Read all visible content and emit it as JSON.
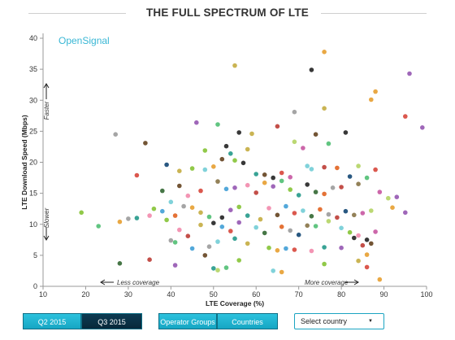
{
  "title": "THE FULL SPECTRUM OF LTE",
  "brand": {
    "text": "OpenSignal",
    "color": "#39b7d5"
  },
  "controls": {
    "period_buttons": [
      "Q2 2015",
      "Q3 2015"
    ],
    "group_buttons": [
      "Operator Groups",
      "Countries"
    ],
    "select": {
      "label": "Select country",
      "arrow": "▼"
    }
  },
  "chart_data": {
    "type": "scatter",
    "title": "THE FULL SPECTRUM OF LTE",
    "xlabel": "LTE Coverage (%)",
    "ylabel": "LTE Download Speed (Mbps)",
    "xlim": [
      10,
      100
    ],
    "ylim": [
      0,
      40
    ],
    "xticks": [
      10,
      20,
      30,
      40,
      50,
      60,
      70,
      80,
      90,
      100
    ],
    "yticks": [
      0,
      5,
      10,
      15,
      20,
      25,
      30,
      35,
      40
    ],
    "grid": false,
    "annotations": {
      "faster": "Faster",
      "slower": "Slower",
      "less_coverage": "Less coverage",
      "more_coverage": "More coverage"
    },
    "palette": [
      "#e8a33a",
      "#8bc63f",
      "#2e9e8f",
      "#f28fb0",
      "#c7b04a",
      "#6b4c2a",
      "#2d2d2d",
      "#4aa3d8",
      "#d94f45",
      "#9a5fb5",
      "#79d0d8",
      "#3c6f3c",
      "#e36a2b",
      "#a0a0a0",
      "#c0463f",
      "#1e4f7a",
      "#8d7a4f",
      "#59c27a",
      "#c95fa5",
      "#b7d66b"
    ],
    "points": [
      [
        76,
        37.8,
        0
      ],
      [
        96,
        34.3,
        9
      ],
      [
        73,
        34.9,
        6
      ],
      [
        55,
        35.6,
        4
      ],
      [
        88,
        31.4,
        0
      ],
      [
        87,
        30.1,
        0
      ],
      [
        99,
        25.6,
        9
      ],
      [
        95,
        27.4,
        8
      ],
      [
        76,
        28.7,
        4
      ],
      [
        69,
        28.1,
        13
      ],
      [
        27,
        24.5,
        13
      ],
      [
        34,
        23.1,
        5
      ],
      [
        51,
        26.1,
        17
      ],
      [
        46,
        26.4,
        9
      ],
      [
        56,
        24.8,
        6
      ],
      [
        59,
        24.6,
        4
      ],
      [
        65,
        25.8,
        14
      ],
      [
        81,
        24.8,
        6
      ],
      [
        74,
        24.5,
        5
      ],
      [
        69,
        23.3,
        19
      ],
      [
        77,
        23.0,
        17
      ],
      [
        71,
        22.3,
        18
      ],
      [
        53,
        22.6,
        6
      ],
      [
        48,
        21.9,
        1
      ],
      [
        58,
        22.1,
        4
      ],
      [
        54,
        21.4,
        2
      ],
      [
        52,
        20.5,
        5
      ],
      [
        55,
        20.3,
        1
      ],
      [
        57,
        19.9,
        6
      ],
      [
        50,
        19.3,
        0
      ],
      [
        45,
        19.0,
        1
      ],
      [
        39,
        19.6,
        15
      ],
      [
        42,
        18.6,
        4
      ],
      [
        48,
        18.8,
        10
      ],
      [
        60,
        18.1,
        2
      ],
      [
        62,
        18.0,
        5
      ],
      [
        64,
        17.5,
        6
      ],
      [
        66,
        18.3,
        8
      ],
      [
        68,
        17.6,
        18
      ],
      [
        72,
        19.4,
        10
      ],
      [
        73,
        18.9,
        10
      ],
      [
        76,
        19.2,
        14
      ],
      [
        79,
        19.1,
        12
      ],
      [
        84,
        19.4,
        19
      ],
      [
        88,
        18.8,
        8
      ],
      [
        32,
        17.9,
        8
      ],
      [
        42,
        16.2,
        5
      ],
      [
        44,
        14.6,
        3
      ],
      [
        47,
        15.4,
        8
      ],
      [
        51,
        16.9,
        16
      ],
      [
        53,
        15.7,
        7
      ],
      [
        55,
        15.9,
        9
      ],
      [
        58,
        16.3,
        3
      ],
      [
        60,
        15.1,
        14
      ],
      [
        62,
        16.7,
        0
      ],
      [
        64,
        16.1,
        9
      ],
      [
        66,
        17.0,
        17
      ],
      [
        68,
        15.6,
        1
      ],
      [
        70,
        14.7,
        2
      ],
      [
        72,
        16.4,
        6
      ],
      [
        74,
        15.2,
        11
      ],
      [
        76,
        14.9,
        12
      ],
      [
        78,
        15.9,
        13
      ],
      [
        80,
        16.0,
        14
      ],
      [
        82,
        17.7,
        15
      ],
      [
        84,
        16.5,
        16
      ],
      [
        86,
        17.5,
        17
      ],
      [
        89,
        15.2,
        18
      ],
      [
        91,
        14.2,
        19
      ],
      [
        93,
        14.4,
        9
      ],
      [
        38,
        15.4,
        11
      ],
      [
        40,
        13.6,
        10
      ],
      [
        36,
        12.5,
        1
      ],
      [
        38,
        12.1,
        7
      ],
      [
        41,
        11.4,
        12
      ],
      [
        43,
        12.9,
        13
      ],
      [
        45,
        12.7,
        0
      ],
      [
        47,
        11.9,
        4
      ],
      [
        49,
        11.2,
        17
      ],
      [
        52,
        11.1,
        6
      ],
      [
        54,
        12.3,
        9
      ],
      [
        56,
        12.8,
        1
      ],
      [
        58,
        11.4,
        2
      ],
      [
        61,
        10.8,
        4
      ],
      [
        63,
        12.6,
        3
      ],
      [
        65,
        11.5,
        5
      ],
      [
        67,
        12.9,
        7
      ],
      [
        69,
        11.8,
        8
      ],
      [
        71,
        12.2,
        10
      ],
      [
        73,
        11.3,
        11
      ],
      [
        75,
        12.4,
        12
      ],
      [
        77,
        11.6,
        13
      ],
      [
        79,
        11.1,
        14
      ],
      [
        81,
        12.1,
        15
      ],
      [
        83,
        11.5,
        16
      ],
      [
        85,
        11.8,
        18
      ],
      [
        87,
        12.2,
        19
      ],
      [
        92,
        12.7,
        0
      ],
      [
        95,
        11.9,
        9
      ],
      [
        19,
        11.9,
        1
      ],
      [
        23,
        9.7,
        17
      ],
      [
        28,
        10.4,
        0
      ],
      [
        30,
        10.9,
        13
      ],
      [
        32,
        11.0,
        2
      ],
      [
        35,
        11.4,
        3
      ],
      [
        39,
        10.7,
        1
      ],
      [
        42,
        9.1,
        3
      ],
      [
        44,
        8.1,
        14
      ],
      [
        47,
        9.9,
        4
      ],
      [
        50,
        10.2,
        6
      ],
      [
        52,
        9.6,
        7
      ],
      [
        54,
        8.9,
        8
      ],
      [
        56,
        10.3,
        9
      ],
      [
        60,
        9.5,
        10
      ],
      [
        62,
        8.6,
        11
      ],
      [
        66,
        9.6,
        12
      ],
      [
        68,
        9.0,
        13
      ],
      [
        70,
        8.3,
        15
      ],
      [
        72,
        9.8,
        16
      ],
      [
        74,
        9.7,
        17
      ],
      [
        77,
        10.5,
        19
      ],
      [
        80,
        9.4,
        10
      ],
      [
        82,
        8.7,
        1
      ],
      [
        84,
        8.2,
        3
      ],
      [
        86,
        7.5,
        6
      ],
      [
        88,
        8.8,
        18
      ],
      [
        40,
        7.4,
        13
      ],
      [
        41,
        7.1,
        17
      ],
      [
        45,
        6.1,
        7
      ],
      [
        49,
        6.4,
        13
      ],
      [
        51,
        7.2,
        10
      ],
      [
        55,
        7.7,
        2
      ],
      [
        58,
        6.9,
        4
      ],
      [
        63,
        6.2,
        1
      ],
      [
        65,
        5.8,
        0
      ],
      [
        67,
        6.1,
        7
      ],
      [
        69,
        5.9,
        8
      ],
      [
        73,
        5.7,
        3
      ],
      [
        76,
        6.3,
        2
      ],
      [
        80,
        6.2,
        9
      ],
      [
        83,
        7.8,
        6
      ],
      [
        85,
        6.6,
        14
      ],
      [
        87,
        6.9,
        5
      ],
      [
        86,
        5.1,
        0
      ],
      [
        28,
        3.7,
        11
      ],
      [
        35,
        4.3,
        14
      ],
      [
        41,
        3.4,
        9
      ],
      [
        48,
        5.0,
        5
      ],
      [
        50,
        2.9,
        2
      ],
      [
        51,
        2.6,
        19
      ],
      [
        53,
        3.0,
        17
      ],
      [
        56,
        4.2,
        1
      ],
      [
        64,
        2.5,
        10
      ],
      [
        66,
        2.3,
        0
      ],
      [
        76,
        3.6,
        1
      ],
      [
        84,
        4.1,
        4
      ],
      [
        86,
        3.1,
        8
      ],
      [
        89,
        1.1,
        0
      ]
    ]
  }
}
